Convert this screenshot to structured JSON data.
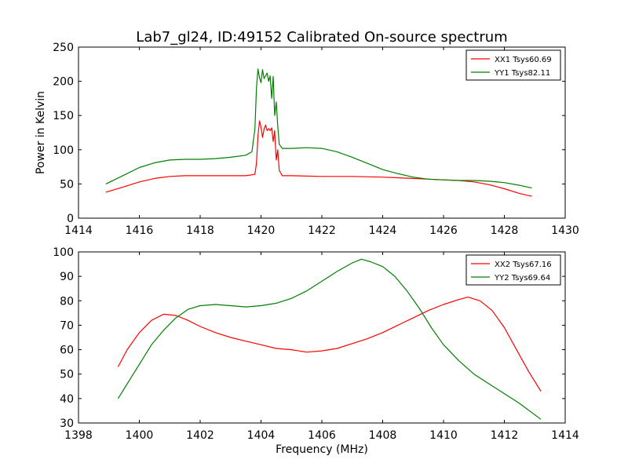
{
  "figure": {
    "title": "Lab7_gl24, ID:49152 Calibrated On-source spectrum"
  },
  "chart_data": [
    {
      "type": "line",
      "title": "Lab7_gl24, ID:49152 Calibrated On-source spectrum",
      "xlabel": "",
      "ylabel": "Power in Kelvin",
      "xlim": [
        1414,
        1430
      ],
      "ylim": [
        0,
        250
      ],
      "xticks": [
        1414,
        1416,
        1418,
        1420,
        1422,
        1424,
        1426,
        1428,
        1430
      ],
      "yticks": [
        0,
        50,
        100,
        150,
        200,
        250
      ],
      "legend_position": "top-right",
      "series": [
        {
          "name": "XX1 Tsys60.69",
          "color": "#ff0000",
          "x": [
            1414.9,
            1415.5,
            1416,
            1416.5,
            1417,
            1417.5,
            1418,
            1418.5,
            1419,
            1419.5,
            1419.8,
            1419.85,
            1419.9,
            1419.95,
            1420,
            1420.05,
            1420.1,
            1420.15,
            1420.2,
            1420.25,
            1420.3,
            1420.35,
            1420.4,
            1420.45,
            1420.5,
            1420.55,
            1420.6,
            1420.7,
            1421,
            1422,
            1423,
            1424,
            1425,
            1426,
            1426.5,
            1427,
            1427.5,
            1428,
            1428.5,
            1428.9
          ],
          "values": [
            38,
            46,
            53,
            58,
            61,
            62,
            62,
            62,
            62,
            62,
            64,
            80,
            120,
            142,
            133,
            118,
            130,
            136,
            128,
            131,
            128,
            132,
            112,
            128,
            85,
            100,
            70,
            62,
            62,
            61,
            61,
            60,
            58,
            56,
            55,
            53,
            49,
            43,
            36,
            32
          ]
        },
        {
          "name": "YY1 Tsys82.11",
          "color": "#008000",
          "x": [
            1414.9,
            1415.5,
            1416,
            1416.5,
            1417,
            1417.5,
            1418,
            1418.5,
            1419,
            1419.5,
            1419.7,
            1419.8,
            1419.85,
            1419.9,
            1419.95,
            1420,
            1420.05,
            1420.1,
            1420.15,
            1420.2,
            1420.25,
            1420.3,
            1420.35,
            1420.4,
            1420.45,
            1420.5,
            1420.55,
            1420.6,
            1420.7,
            1421,
            1421.5,
            1422,
            1422.5,
            1423,
            1423.5,
            1424,
            1424.5,
            1425,
            1425.5,
            1426,
            1426.5,
            1427,
            1427.5,
            1428,
            1428.5,
            1428.9
          ],
          "values": [
            50,
            63,
            74,
            81,
            85,
            86,
            86,
            87,
            89,
            92,
            97,
            130,
            190,
            218,
            205,
            198,
            217,
            204,
            208,
            212,
            200,
            208,
            175,
            207,
            150,
            170,
            135,
            108,
            102,
            102,
            103,
            102,
            97,
            89,
            80,
            71,
            65,
            60,
            57,
            56,
            55,
            55,
            54,
            52,
            48,
            44
          ]
        }
      ]
    },
    {
      "type": "line",
      "title": "",
      "xlabel": "Frequency (MHz)",
      "ylabel": "",
      "xlim": [
        1398,
        1414
      ],
      "ylim": [
        30,
        100
      ],
      "xticks": [
        1398,
        1400,
        1402,
        1404,
        1406,
        1408,
        1410,
        1412,
        1414
      ],
      "yticks": [
        30,
        40,
        50,
        60,
        70,
        80,
        90,
        100
      ],
      "legend_position": "top-right",
      "series": [
        {
          "name": "XX2 Tsys67.16",
          "color": "#ff0000",
          "x": [
            1399.3,
            1399.6,
            1400,
            1400.4,
            1400.8,
            1401.2,
            1401.6,
            1402,
            1402.5,
            1403,
            1403.5,
            1404,
            1404.5,
            1405,
            1405.5,
            1406,
            1406.5,
            1407,
            1407.5,
            1408,
            1408.5,
            1409,
            1409.5,
            1410,
            1410.5,
            1410.8,
            1411.2,
            1411.6,
            1412,
            1412.4,
            1412.8,
            1413.2
          ],
          "values": [
            53,
            60,
            67,
            72,
            74.5,
            74,
            72,
            69.5,
            67,
            65,
            63.5,
            62,
            60.5,
            60,
            59,
            59.5,
            60.5,
            62.5,
            64.5,
            67,
            70,
            73,
            76,
            78.5,
            80.5,
            81.5,
            80,
            76,
            69,
            60,
            51,
            43
          ]
        },
        {
          "name": "YY2 Tsys69.64",
          "color": "#008000",
          "x": [
            1399.3,
            1399.6,
            1400,
            1400.4,
            1400.8,
            1401.2,
            1401.6,
            1402,
            1402.5,
            1403,
            1403.5,
            1404,
            1404.5,
            1405,
            1405.5,
            1406,
            1406.5,
            1407,
            1407.3,
            1407.6,
            1408,
            1408.4,
            1408.8,
            1409.2,
            1409.6,
            1410,
            1410.5,
            1411,
            1411.5,
            1412,
            1412.5,
            1413.2
          ],
          "values": [
            40,
            46,
            54,
            62,
            68,
            73,
            76.5,
            78,
            78.5,
            78,
            77.5,
            78,
            79,
            81,
            84,
            88,
            92,
            95.5,
            97,
            96,
            94,
            90,
            84,
            77,
            69,
            62,
            55.5,
            50,
            46,
            42,
            38,
            31.5
          ]
        }
      ]
    }
  ]
}
